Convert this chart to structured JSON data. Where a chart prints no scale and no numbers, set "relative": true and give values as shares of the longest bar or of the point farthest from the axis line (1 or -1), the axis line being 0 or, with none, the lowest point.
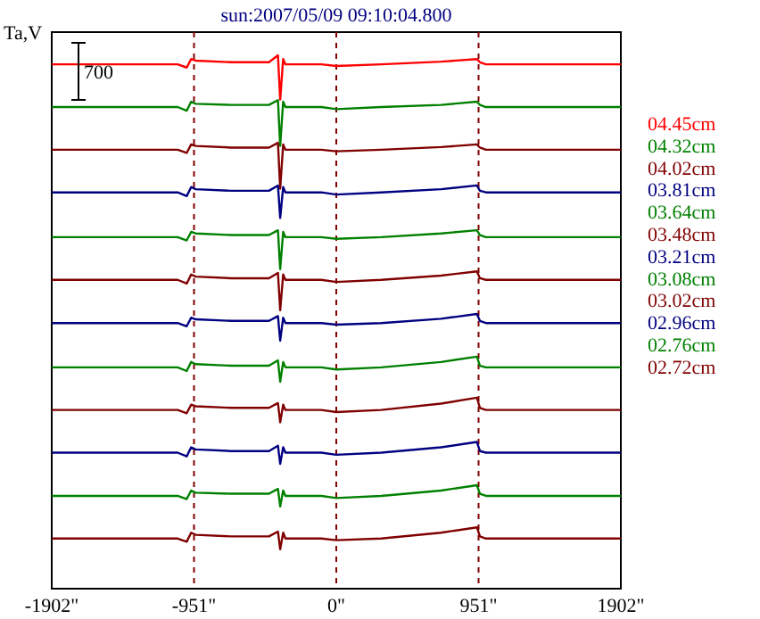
{
  "chart_data": {
    "type": "line",
    "title": "sun:2007/05/09 09:10:04.800",
    "ylabel": "Ta,V",
    "relative": true,
    "annotations": [
      "700"
    ],
    "x": [
      -1902,
      -1060,
      -1000,
      -970,
      -940,
      -700,
      -450,
      -390,
      -375,
      -355,
      -340,
      -300,
      -100,
      0,
      300,
      700,
      940,
      960,
      1000,
      1902
    ],
    "xlim": [
      -1902,
      1902
    ],
    "xticks": [
      {
        "value": -1902,
        "label": "-1902\""
      },
      {
        "value": -951,
        "label": "-951\""
      },
      {
        "value": 0,
        "label": "0\""
      },
      {
        "value": 951,
        "label": "951\""
      },
      {
        "value": 1902,
        "label": "1902\""
      }
    ],
    "ref_lines": [
      {
        "axis": "x",
        "value": -951,
        "color": "#800000",
        "line_style": "dashed"
      },
      {
        "axis": "x",
        "value": 0,
        "color": "#800000",
        "line_style": "dashed"
      },
      {
        "axis": "x",
        "value": 951,
        "color": "#800000",
        "line_style": "dashed"
      }
    ],
    "legend": "right",
    "grid": false,
    "marker": "none",
    "line_style": "solid",
    "series": [
      {
        "name": "04.45cm",
        "color": "#ff0000",
        "values": [
          0.983,
          0.983,
          0.977,
          0.993,
          0.99,
          0.987,
          0.987,
          1.0,
          0.917,
          0.993,
          0.983,
          0.983,
          0.983,
          0.98,
          0.983,
          0.988,
          0.993,
          0.987,
          0.983,
          0.983
        ]
      },
      {
        "name": "04.32cm",
        "color": "#008000",
        "values": [
          0.903,
          0.903,
          0.896,
          0.913,
          0.909,
          0.907,
          0.907,
          0.916,
          0.83,
          0.913,
          0.903,
          0.903,
          0.903,
          0.899,
          0.903,
          0.907,
          0.913,
          0.907,
          0.903,
          0.903
        ]
      },
      {
        "name": "04.02cm",
        "color": "#800000",
        "values": [
          0.823,
          0.823,
          0.817,
          0.833,
          0.83,
          0.827,
          0.827,
          0.836,
          0.75,
          0.833,
          0.823,
          0.823,
          0.823,
          0.82,
          0.823,
          0.828,
          0.833,
          0.827,
          0.823,
          0.823
        ]
      },
      {
        "name": "03.81cm",
        "color": "#000080",
        "values": [
          0.743,
          0.743,
          0.736,
          0.753,
          0.749,
          0.746,
          0.746,
          0.756,
          0.695,
          0.753,
          0.743,
          0.743,
          0.743,
          0.739,
          0.743,
          0.749,
          0.756,
          0.746,
          0.743,
          0.743
        ]
      },
      {
        "name": "03.64cm",
        "color": "#008000",
        "values": [
          0.659,
          0.659,
          0.653,
          0.669,
          0.666,
          0.663,
          0.663,
          0.672,
          0.599,
          0.669,
          0.659,
          0.659,
          0.659,
          0.656,
          0.659,
          0.666,
          0.672,
          0.663,
          0.659,
          0.659
        ]
      },
      {
        "name": "03.48cm",
        "color": "#800000",
        "values": [
          0.579,
          0.579,
          0.572,
          0.589,
          0.585,
          0.582,
          0.582,
          0.592,
          0.522,
          0.589,
          0.579,
          0.579,
          0.579,
          0.575,
          0.579,
          0.587,
          0.595,
          0.582,
          0.579,
          0.579
        ]
      },
      {
        "name": "03.21cm",
        "color": "#000080",
        "values": [
          0.498,
          0.498,
          0.492,
          0.508,
          0.505,
          0.502,
          0.502,
          0.511,
          0.465,
          0.508,
          0.498,
          0.498,
          0.498,
          0.495,
          0.498,
          0.506,
          0.515,
          0.502,
          0.498,
          0.498
        ]
      },
      {
        "name": "03.08cm",
        "color": "#008000",
        "values": [
          0.415,
          0.415,
          0.408,
          0.425,
          0.421,
          0.418,
          0.418,
          0.428,
          0.388,
          0.425,
          0.415,
          0.415,
          0.415,
          0.411,
          0.415,
          0.425,
          0.435,
          0.418,
          0.415,
          0.415
        ]
      },
      {
        "name": "03.02cm",
        "color": "#800000",
        "values": [
          0.335,
          0.335,
          0.329,
          0.345,
          0.342,
          0.339,
          0.339,
          0.348,
          0.312,
          0.345,
          0.335,
          0.335,
          0.335,
          0.331,
          0.335,
          0.347,
          0.358,
          0.339,
          0.335,
          0.335
        ]
      },
      {
        "name": "02.96cm",
        "color": "#000080",
        "values": [
          0.255,
          0.255,
          0.248,
          0.265,
          0.261,
          0.258,
          0.258,
          0.268,
          0.234,
          0.265,
          0.255,
          0.255,
          0.255,
          0.251,
          0.255,
          0.265,
          0.275,
          0.258,
          0.255,
          0.255
        ]
      },
      {
        "name": "02.76cm",
        "color": "#008000",
        "values": [
          0.174,
          0.174,
          0.168,
          0.184,
          0.18,
          0.178,
          0.178,
          0.187,
          0.154,
          0.184,
          0.174,
          0.174,
          0.174,
          0.17,
          0.174,
          0.184,
          0.194,
          0.178,
          0.174,
          0.174
        ]
      },
      {
        "name": "02.72cm",
        "color": "#800000",
        "values": [
          0.094,
          0.094,
          0.088,
          0.105,
          0.101,
          0.098,
          0.098,
          0.107,
          0.074,
          0.105,
          0.094,
          0.094,
          0.094,
          0.091,
          0.094,
          0.105,
          0.115,
          0.098,
          0.094,
          0.094
        ]
      }
    ]
  }
}
